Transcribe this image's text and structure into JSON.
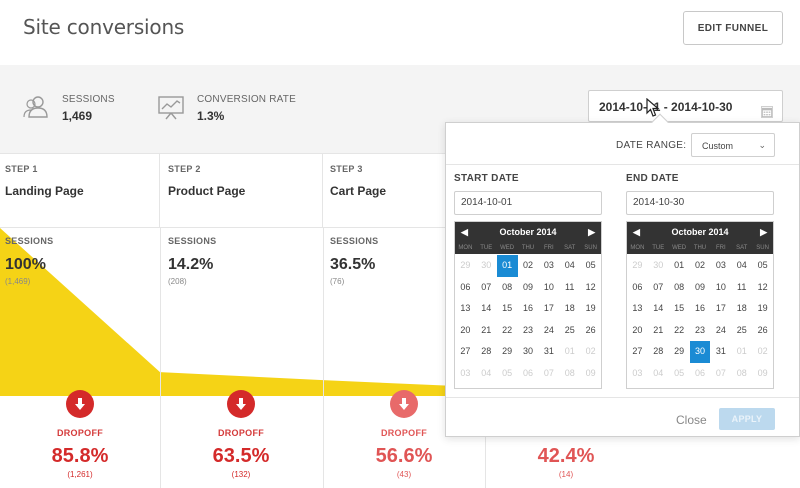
{
  "header": {
    "title": "Site conversions",
    "edit_button": "EDIT FUNNEL"
  },
  "stats": {
    "sessions": {
      "label": "SESSIONS",
      "value": "1,469",
      "icon": "users-icon"
    },
    "conversion": {
      "label": "CONVERSION RATE",
      "value": "1.3%",
      "icon": "chart-board-icon"
    },
    "date_range_value": "2014-10-01 - 2014-10-30"
  },
  "steps": [
    {
      "num": "STEP 1",
      "name": "Landing Page",
      "metric_label": "SESSIONS",
      "pct": "100%",
      "count": "(1,469)"
    },
    {
      "num": "STEP 2",
      "name": "Product Page",
      "metric_label": "SESSIONS",
      "pct": "14.2%",
      "count": "(208)"
    },
    {
      "num": "STEP 3",
      "name": "Cart Page",
      "metric_label": "SESSIONS",
      "pct": "36.5%",
      "count": "(76)"
    }
  ],
  "dropoffs": [
    {
      "label": "DROPOFF",
      "pct": "85.8%",
      "count": "(1,261)"
    },
    {
      "label": "DROPOFF",
      "pct": "63.5%",
      "count": "(132)"
    },
    {
      "label": "DROPOFF",
      "pct": "56.6%",
      "count": "(43)"
    },
    {
      "label": "",
      "pct": "42.4%",
      "count": "(14)"
    }
  ],
  "funnel_levels": [
    1.0,
    0.142,
    0.052
  ],
  "colors": {
    "funnel": "#f5d316",
    "accent": "#1a8bd4",
    "dropoff": "#d42a2a"
  },
  "datepicker": {
    "range_label": "DATE RANGE:",
    "range_option": "Custom",
    "start_label": "START DATE",
    "start_value": "2014-10-01",
    "end_label": "END DATE",
    "end_value": "2014-10-30",
    "month": "October 2014",
    "dow": [
      "MON",
      "TUE",
      "WED",
      "THU",
      "FRI",
      "SAT",
      "SUN"
    ],
    "start_days": [
      "29",
      "30",
      "01",
      "02",
      "03",
      "04",
      "05",
      "06",
      "07",
      "08",
      "09",
      "10",
      "11",
      "12",
      "13",
      "14",
      "15",
      "16",
      "17",
      "18",
      "19",
      "20",
      "21",
      "22",
      "23",
      "24",
      "25",
      "26",
      "27",
      "28",
      "29",
      "30",
      "31",
      "01",
      "02",
      "03",
      "04",
      "05",
      "06",
      "07",
      "08",
      "09"
    ],
    "end_days": [
      "29",
      "30",
      "01",
      "02",
      "03",
      "04",
      "05",
      "06",
      "07",
      "08",
      "09",
      "10",
      "11",
      "12",
      "13",
      "14",
      "15",
      "16",
      "17",
      "18",
      "19",
      "20",
      "21",
      "22",
      "23",
      "24",
      "25",
      "26",
      "27",
      "28",
      "29",
      "30",
      "31",
      "01",
      "02",
      "03",
      "04",
      "05",
      "06",
      "07",
      "08",
      "09"
    ],
    "close": "Close",
    "apply": "APPLY"
  }
}
